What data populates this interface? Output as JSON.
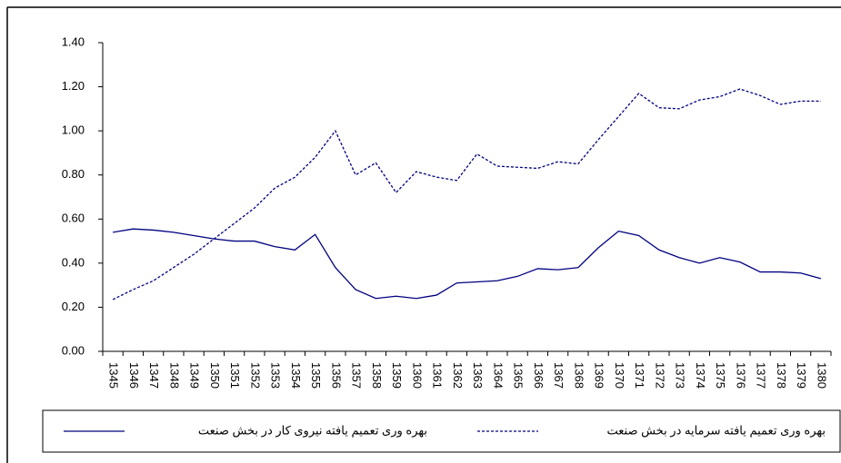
{
  "chart_data": {
    "type": "line",
    "categories": [
      "1345",
      "1346",
      "1347",
      "1348",
      "1349",
      "1350",
      "1351",
      "1352",
      "1353",
      "1354",
      "1355",
      "1356",
      "1357",
      "1358",
      "1359",
      "1360",
      "1361",
      "1362",
      "1363",
      "1364",
      "1365",
      "1366",
      "1367",
      "1368",
      "1369",
      "1370",
      "1371",
      "1372",
      "1373",
      "1374",
      "1375",
      "1376",
      "1377",
      "1378",
      "1379",
      "1380"
    ],
    "series": [
      {
        "name": "بهره وری تعمیم یافته سرمایه در بخش صنعت",
        "color": "#000080",
        "line_style": "dashed",
        "values": [
          0.235,
          0.28,
          0.32,
          0.38,
          0.44,
          0.51,
          0.58,
          0.65,
          0.74,
          0.79,
          0.88,
          1.0,
          0.8,
          0.855,
          0.72,
          0.815,
          0.79,
          0.775,
          0.895,
          0.84,
          0.835,
          0.83,
          0.86,
          0.85,
          0.96,
          1.065,
          1.17,
          1.105,
          1.1,
          1.14,
          1.155,
          1.19,
          1.16,
          1.12,
          1.135,
          1.135
        ]
      },
      {
        "name": "بهره وری تعمیم یافته نیروی کار در بخش صنعت",
        "color": "#000080",
        "line_style": "solid",
        "values": [
          0.54,
          0.555,
          0.55,
          0.54,
          0.525,
          0.51,
          0.5,
          0.5,
          0.475,
          0.46,
          0.53,
          0.38,
          0.28,
          0.24,
          0.25,
          0.24,
          0.255,
          0.31,
          0.315,
          0.32,
          0.34,
          0.375,
          0.37,
          0.38,
          0.47,
          0.545,
          0.525,
          0.46,
          0.425,
          0.4,
          0.425,
          0.405,
          0.36,
          0.36,
          0.355,
          0.33
        ]
      }
    ],
    "ylim": [
      0,
      1.4
    ],
    "yticks": [
      {
        "value": 0,
        "label": "0.00"
      },
      {
        "value": 0.2,
        "label": "0.20"
      },
      {
        "value": 0.4,
        "label": "0.40"
      },
      {
        "value": 0.6,
        "label": "0.60"
      },
      {
        "value": 0.8,
        "label": "0.80"
      },
      {
        "value": 1.0,
        "label": "1.00"
      },
      {
        "value": 1.2,
        "label": "1.20"
      },
      {
        "value": 1.4,
        "label": "1.40"
      }
    ],
    "grid": false,
    "legend": "bottom"
  }
}
